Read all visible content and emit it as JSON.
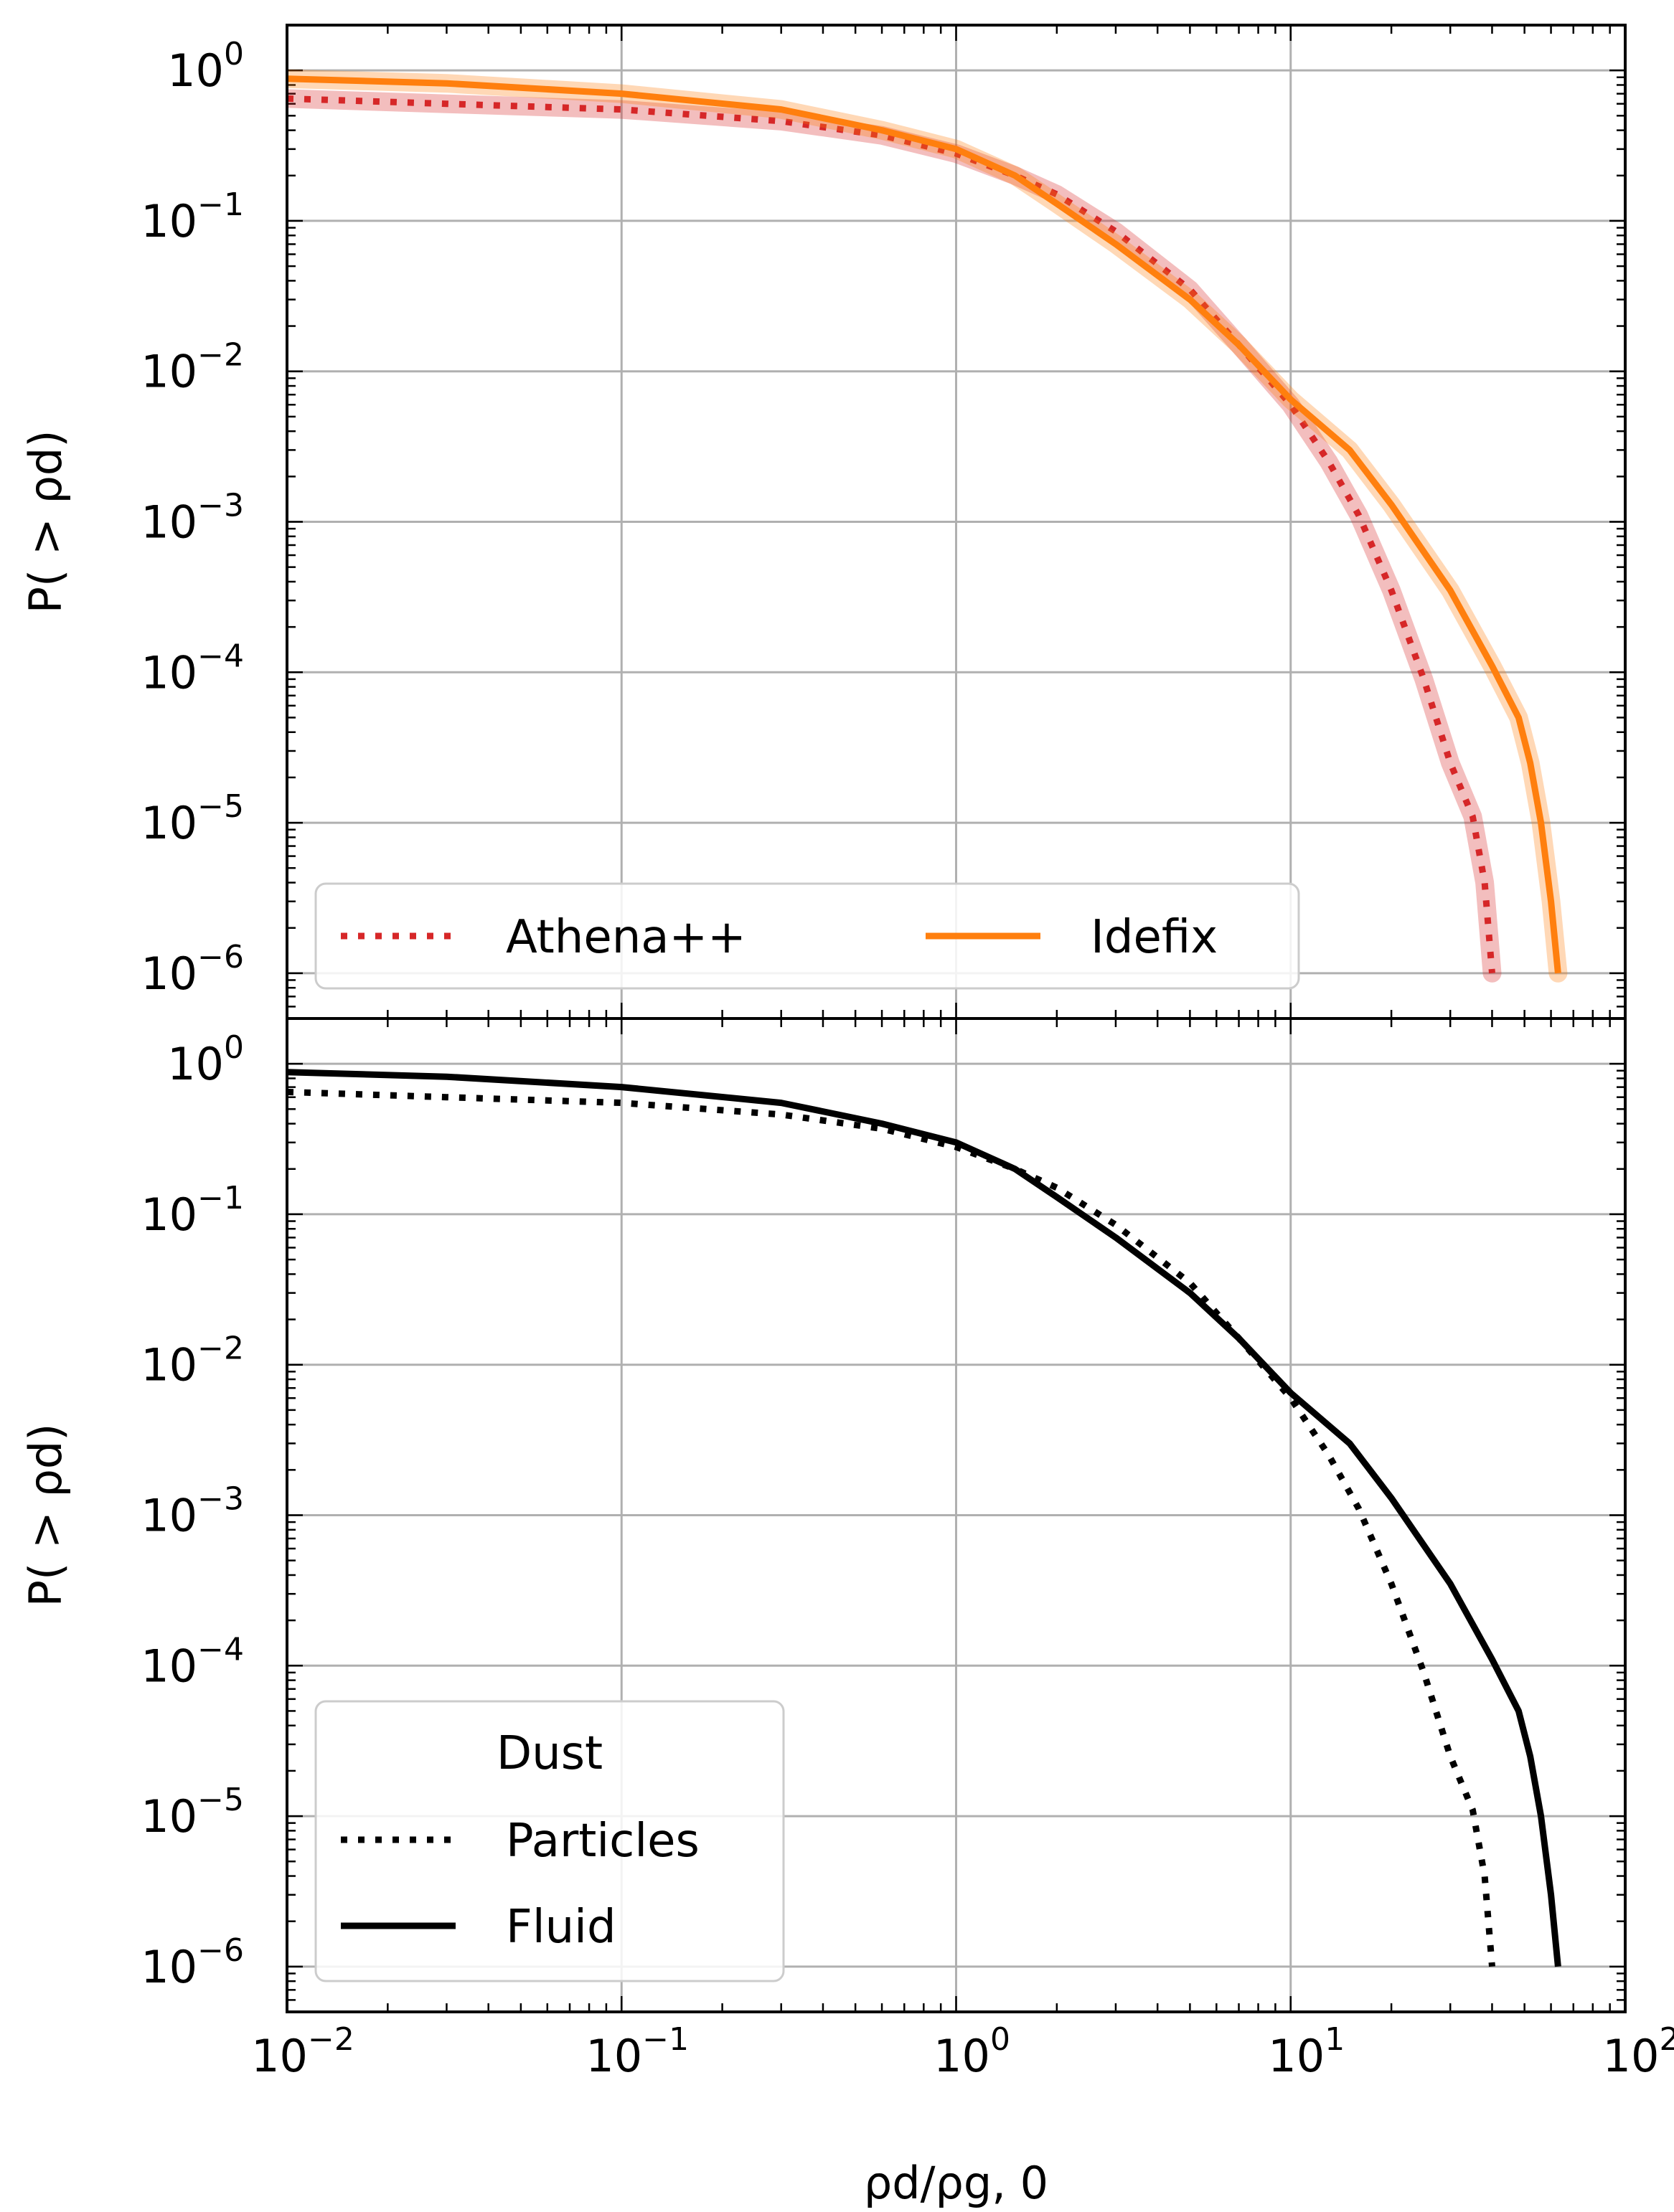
{
  "chart_data": [
    {
      "panel": "top",
      "type": "line",
      "xscale": "log",
      "yscale": "log",
      "xlim": [
        0.01,
        100
      ],
      "ylim": [
        5e-07,
        2
      ],
      "grid": true,
      "ylabel": "P( > ρd)",
      "xlabel": "",
      "y_ticks": [
        {
          "base": "10",
          "exp": "0"
        },
        {
          "base": "10",
          "exp": "−1"
        },
        {
          "base": "10",
          "exp": "−2"
        },
        {
          "base": "10",
          "exp": "−3"
        },
        {
          "base": "10",
          "exp": "−4"
        },
        {
          "base": "10",
          "exp": "−5"
        },
        {
          "base": "10",
          "exp": "−6"
        }
      ],
      "legend_position": "lower-left",
      "legend_columns": 2,
      "series": [
        {
          "name": "Athena++",
          "color": "#d62728",
          "style": "dotted",
          "band": true,
          "points": [
            [
              0.01,
              0.65
            ],
            [
              0.03,
              0.6
            ],
            [
              0.1,
              0.55
            ],
            [
              0.3,
              0.46
            ],
            [
              0.6,
              0.37
            ],
            [
              1.0,
              0.28
            ],
            [
              1.5,
              0.2
            ],
            [
              2.0,
              0.15
            ],
            [
              3.0,
              0.085
            ],
            [
              5.0,
              0.035
            ],
            [
              7.0,
              0.015
            ],
            [
              10.0,
              0.006
            ],
            [
              13.0,
              0.0025
            ],
            [
              16.0,
              0.0011
            ],
            [
              20.0,
              0.00035
            ],
            [
              25.0,
              9e-05
            ],
            [
              30.0,
              2.5e-05
            ],
            [
              35.0,
              1.1e-05
            ],
            [
              38.0,
              4e-06
            ],
            [
              40.0,
              1e-06
            ]
          ]
        },
        {
          "name": "Idefix",
          "color": "#ff7f0e",
          "style": "solid",
          "band": true,
          "points": [
            [
              0.01,
              0.88
            ],
            [
              0.03,
              0.82
            ],
            [
              0.1,
              0.7
            ],
            [
              0.3,
              0.55
            ],
            [
              0.6,
              0.4
            ],
            [
              1.0,
              0.3
            ],
            [
              1.5,
              0.2
            ],
            [
              2.0,
              0.13
            ],
            [
              3.0,
              0.07
            ],
            [
              5.0,
              0.03
            ],
            [
              7.0,
              0.015
            ],
            [
              10.0,
              0.0065
            ],
            [
              15.0,
              0.003
            ],
            [
              20.0,
              0.0013
            ],
            [
              30.0,
              0.00035
            ],
            [
              40.0,
              0.00011
            ],
            [
              48.0,
              5e-05
            ],
            [
              52.0,
              2.5e-05
            ],
            [
              56.0,
              1e-05
            ],
            [
              60.0,
              3e-06
            ],
            [
              63.0,
              1e-06
            ]
          ]
        }
      ]
    },
    {
      "panel": "bottom",
      "type": "line",
      "xscale": "log",
      "yscale": "log",
      "xlim": [
        0.01,
        100
      ],
      "ylim": [
        5e-07,
        2
      ],
      "grid": true,
      "ylabel": "P( > ρd)",
      "xlabel": "ρd/ρg, 0",
      "x_ticks": [
        {
          "base": "10",
          "exp": "−2"
        },
        {
          "base": "10",
          "exp": "−1"
        },
        {
          "base": "10",
          "exp": "0"
        },
        {
          "base": "10",
          "exp": "1"
        },
        {
          "base": "10",
          "exp": "2"
        }
      ],
      "y_ticks": [
        {
          "base": "10",
          "exp": "0"
        },
        {
          "base": "10",
          "exp": "−1"
        },
        {
          "base": "10",
          "exp": "−2"
        },
        {
          "base": "10",
          "exp": "−3"
        },
        {
          "base": "10",
          "exp": "−4"
        },
        {
          "base": "10",
          "exp": "−5"
        },
        {
          "base": "10",
          "exp": "−6"
        }
      ],
      "legend_title": "Dust",
      "legend_position": "lower-left",
      "series": [
        {
          "name": "Particles",
          "color": "#000000",
          "style": "dotted",
          "points": [
            [
              0.01,
              0.65
            ],
            [
              0.03,
              0.6
            ],
            [
              0.1,
              0.55
            ],
            [
              0.3,
              0.46
            ],
            [
              0.6,
              0.37
            ],
            [
              1.0,
              0.28
            ],
            [
              1.5,
              0.2
            ],
            [
              2.0,
              0.15
            ],
            [
              3.0,
              0.085
            ],
            [
              5.0,
              0.035
            ],
            [
              7.0,
              0.015
            ],
            [
              10.0,
              0.006
            ],
            [
              13.0,
              0.0025
            ],
            [
              16.0,
              0.0011
            ],
            [
              20.0,
              0.00035
            ],
            [
              25.0,
              9e-05
            ],
            [
              30.0,
              2.5e-05
            ],
            [
              35.0,
              1.1e-05
            ],
            [
              38.0,
              4e-06
            ],
            [
              40.0,
              1e-06
            ]
          ]
        },
        {
          "name": "Fluid",
          "color": "#000000",
          "style": "solid",
          "points": [
            [
              0.01,
              0.88
            ],
            [
              0.03,
              0.82
            ],
            [
              0.1,
              0.7
            ],
            [
              0.3,
              0.55
            ],
            [
              0.6,
              0.4
            ],
            [
              1.0,
              0.3
            ],
            [
              1.5,
              0.2
            ],
            [
              2.0,
              0.13
            ],
            [
              3.0,
              0.07
            ],
            [
              5.0,
              0.03
            ],
            [
              7.0,
              0.015
            ],
            [
              10.0,
              0.0065
            ],
            [
              15.0,
              0.003
            ],
            [
              20.0,
              0.0013
            ],
            [
              30.0,
              0.00035
            ],
            [
              40.0,
              0.00011
            ],
            [
              48.0,
              5e-05
            ],
            [
              52.0,
              2.5e-05
            ],
            [
              56.0,
              1e-05
            ],
            [
              60.0,
              3e-06
            ],
            [
              63.0,
              1e-06
            ]
          ]
        }
      ]
    }
  ]
}
